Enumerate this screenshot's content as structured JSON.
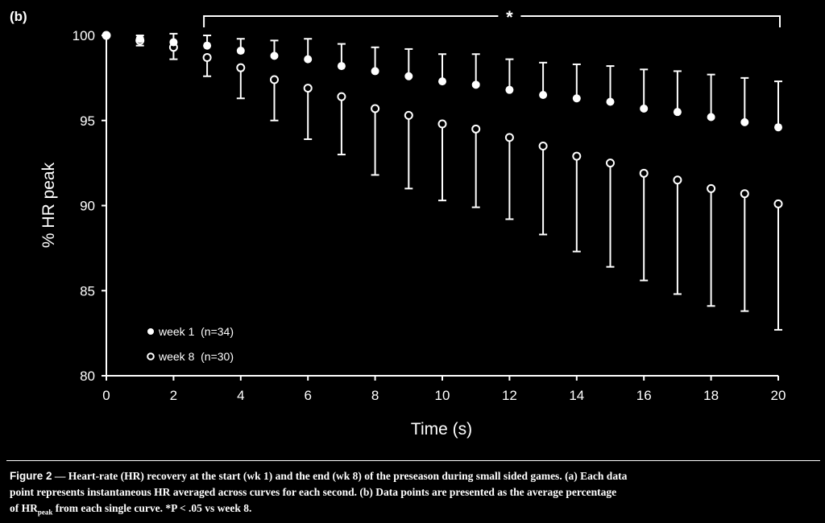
{
  "panel_label": "(b)",
  "chart_data": {
    "type": "scatter",
    "xlabel": "Time (s)",
    "ylabel": "% HR peak",
    "xlim": [
      0,
      20
    ],
    "ylim": [
      80,
      100
    ],
    "xticks": [
      0,
      2,
      4,
      6,
      8,
      10,
      12,
      14,
      16,
      18,
      20
    ],
    "yticks": [
      80,
      85,
      90,
      95,
      100
    ],
    "grid": false,
    "legend_position": "bottom-left",
    "significance": {
      "label": "*",
      "x_start": 3,
      "x_end": 20
    },
    "series": [
      {
        "name": "week 1  (n=34)",
        "marker": "filled-circle",
        "x": [
          0,
          1,
          2,
          3,
          4,
          5,
          6,
          7,
          8,
          9,
          10,
          11,
          12,
          13,
          14,
          15,
          16,
          17,
          18,
          19,
          20
        ],
        "y": [
          100,
          99.8,
          99.6,
          99.4,
          99.1,
          98.8,
          98.6,
          98.2,
          97.9,
          97.6,
          97.3,
          97.1,
          96.8,
          96.5,
          96.3,
          96.1,
          95.7,
          95.5,
          95.2,
          94.9,
          94.6
        ],
        "error_upper": [
          100,
          100,
          100.1,
          100,
          99.8,
          99.7,
          99.8,
          99.5,
          99.3,
          99.2,
          98.9,
          98.9,
          98.6,
          98.4,
          98.3,
          98.2,
          98.0,
          97.9,
          97.7,
          97.5,
          97.3
        ]
      },
      {
        "name": "week 8  (n=30)",
        "marker": "open-circle",
        "x": [
          0,
          1,
          2,
          3,
          4,
          5,
          6,
          7,
          8,
          9,
          10,
          11,
          12,
          13,
          14,
          15,
          16,
          17,
          18,
          19,
          20
        ],
        "y": [
          100,
          99.7,
          99.3,
          98.7,
          98.1,
          97.4,
          96.9,
          96.4,
          95.7,
          95.3,
          94.8,
          94.5,
          94.0,
          93.5,
          92.9,
          92.5,
          91.9,
          91.5,
          91.0,
          90.7,
          90.1
        ],
        "error_lower": [
          100,
          99.4,
          98.6,
          97.6,
          96.3,
          95.0,
          93.9,
          93.0,
          91.8,
          91.0,
          90.3,
          89.9,
          89.2,
          88.3,
          87.3,
          86.4,
          85.6,
          84.8,
          84.1,
          83.8,
          82.7
        ]
      }
    ]
  },
  "caption": {
    "lead": "Figure 2",
    "line1": " — Heart-rate (HR) recovery at the start (wk 1) and the end (wk 8) of the preseason during small sided games. (a) Each data",
    "line2": "point represents instantaneous HR averaged across curves for each second. (b) Data points are presented as the average percentage",
    "line3a": "of HR",
    "line3sub": "peak",
    "line3b": " from each single curve. *P < .05 vs week 8."
  }
}
